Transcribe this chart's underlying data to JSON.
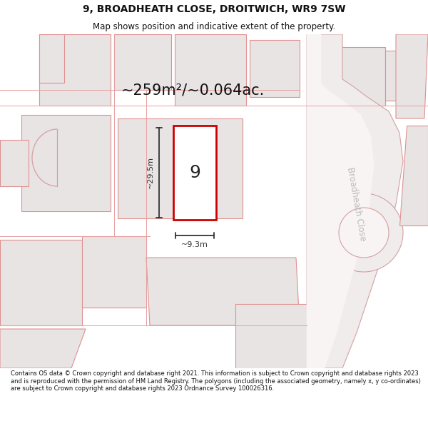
{
  "title": "9, BROADHEATH CLOSE, DROITWICH, WR9 7SW",
  "subtitle": "Map shows position and indicative extent of the property.",
  "area_text": "~259m²/~0.064ac.",
  "label_number": "9",
  "dim_height": "~29.5m",
  "dim_width": "~9.3m",
  "street_label": "Broadheath Close",
  "footer": "Contains OS data © Crown copyright and database right 2021. This information is subject to Crown copyright and database rights 2023 and is reproduced with the permission of HM Land Registry. The polygons (including the associated geometry, namely x, y co-ordinates) are subject to Crown copyright and database rights 2023 Ordnance Survey 100026316.",
  "bg_color": "#f8f4f4",
  "map_bg": "#f8f4f4",
  "plot_fill": "#ffffff",
  "plot_border": "#cc0000",
  "neighbor_fill": "#e8e4e4",
  "neighbor_edge": "#e09090",
  "road_fill": "#f0ecec",
  "road_edge": "#d4a0a0",
  "dim_color": "#333333",
  "title_color": "#111111",
  "footer_color": "#111111",
  "street_label_color": "#bbbbbb"
}
